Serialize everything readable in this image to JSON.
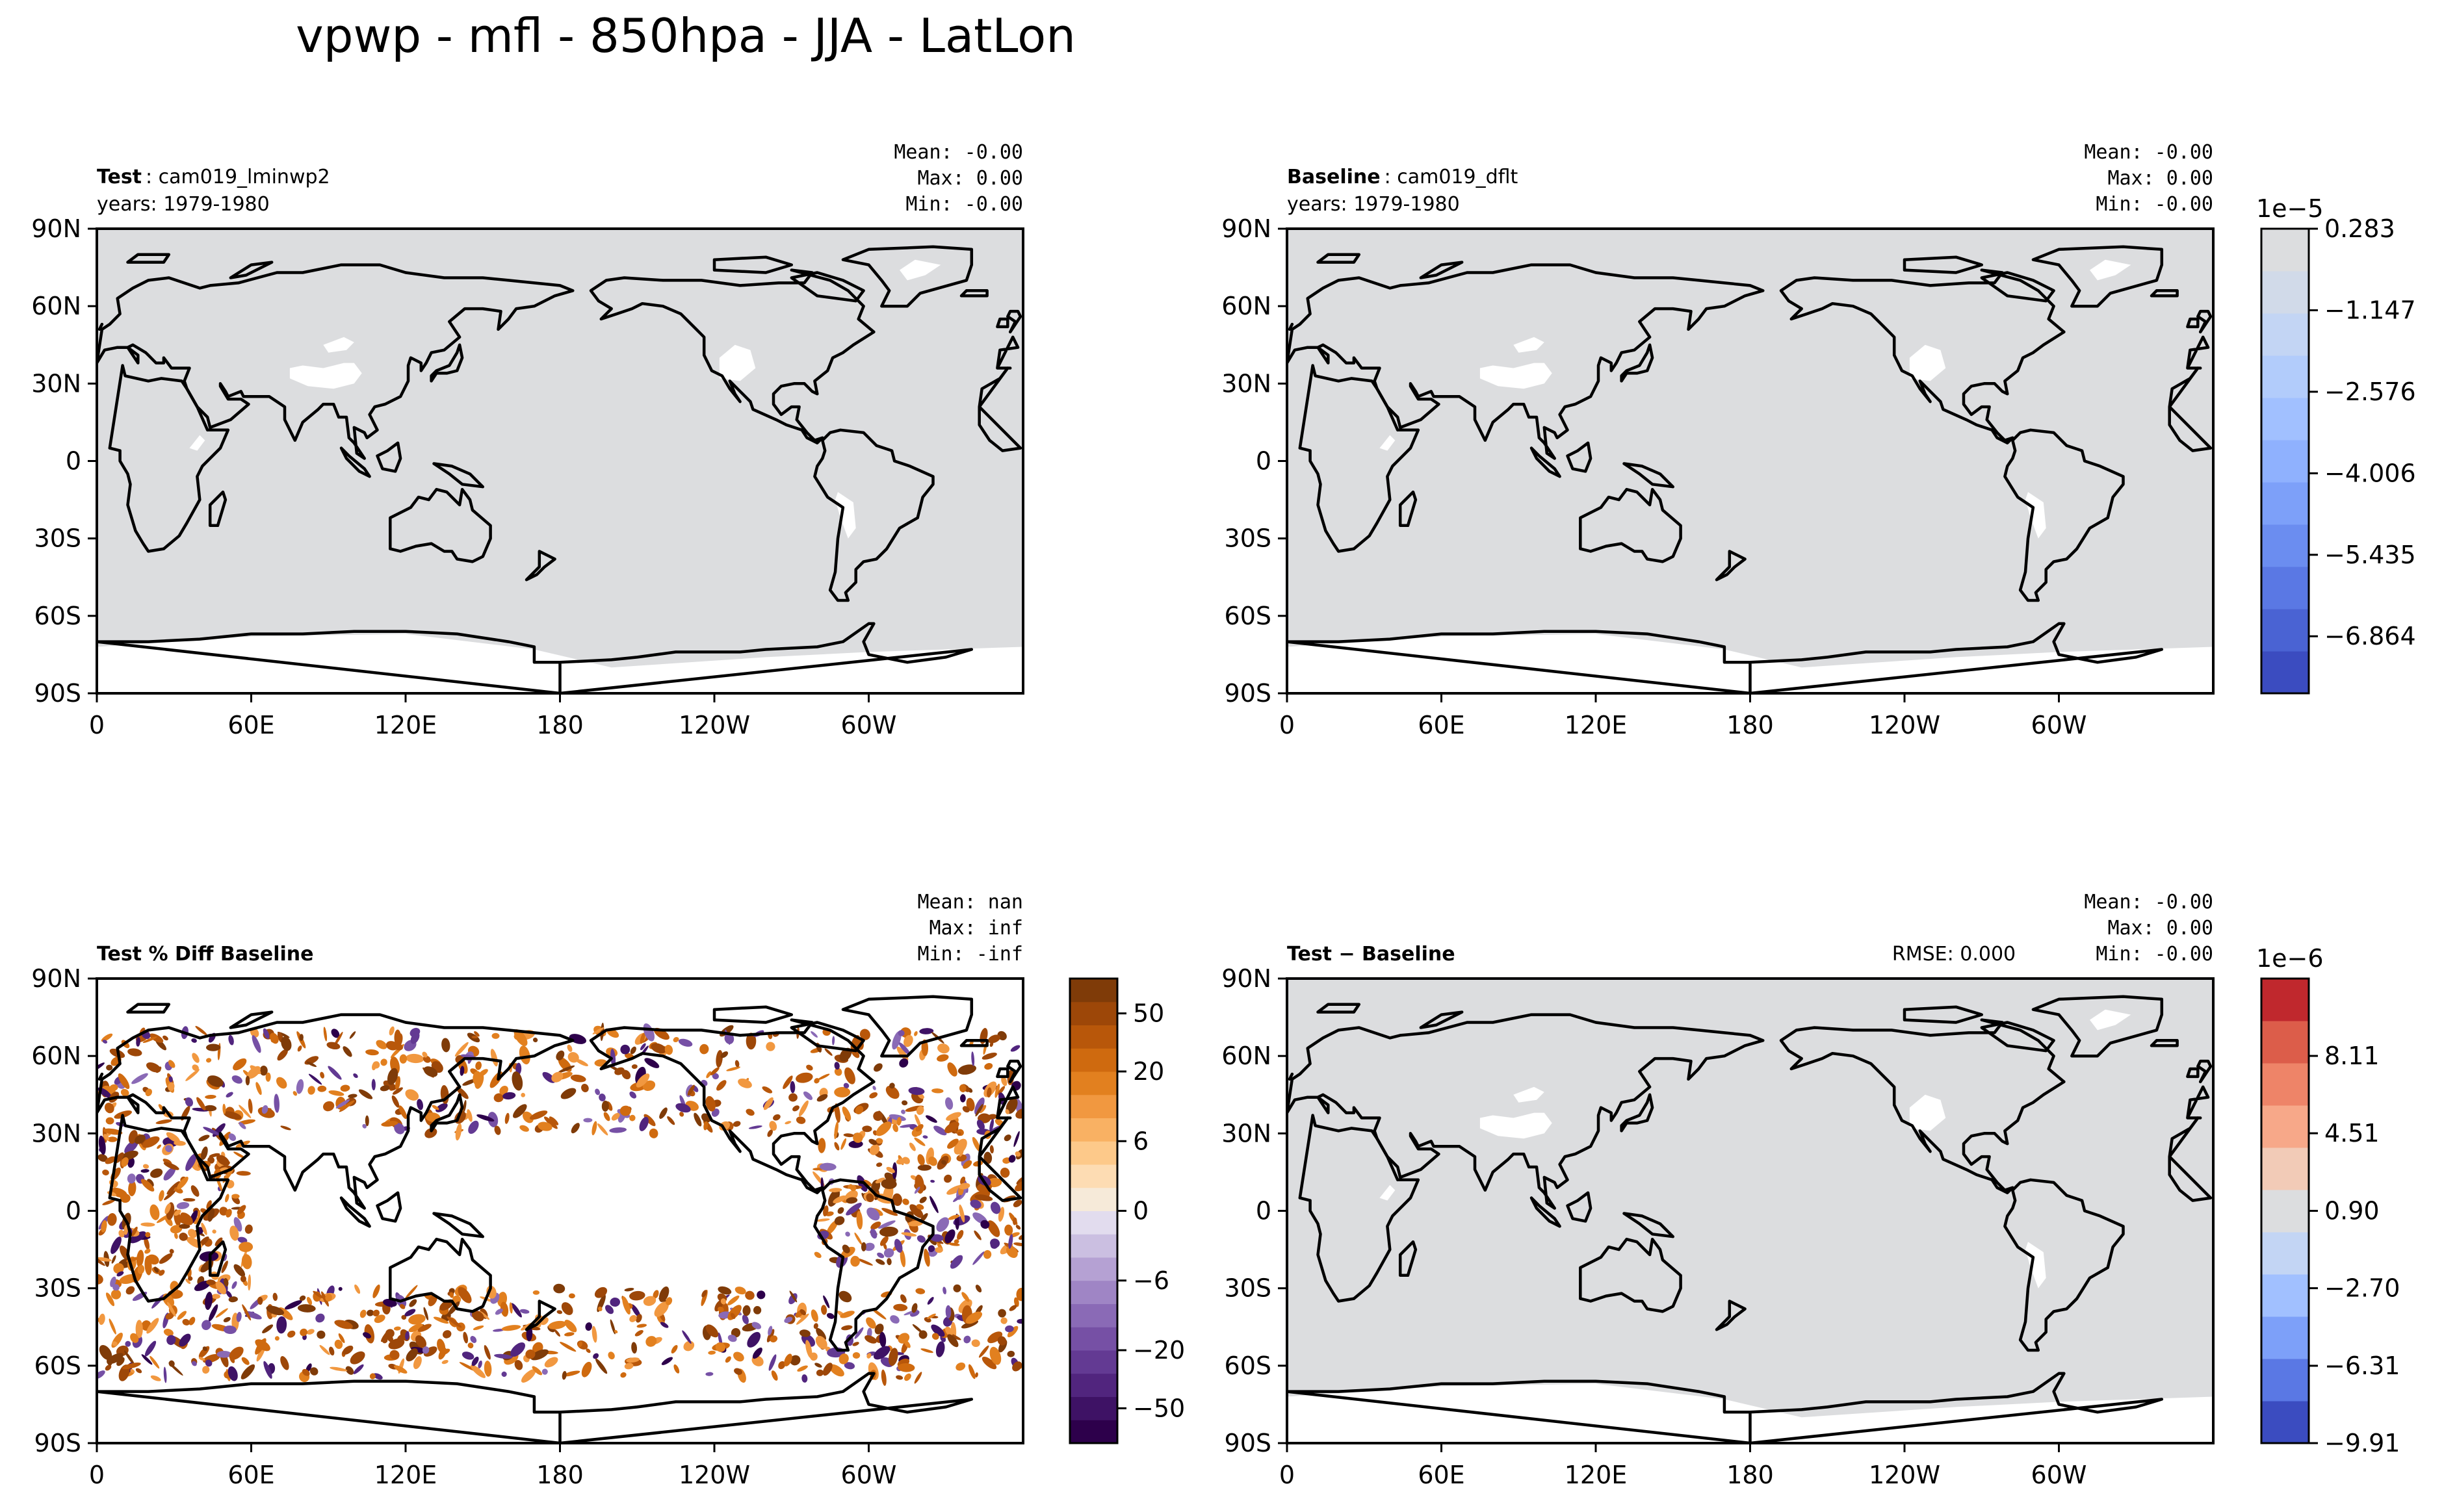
{
  "figure": {
    "title": "vpwp - mfl - 850hpa - JJA - LatLon"
  },
  "colors": {
    "land_fill": "#dcdddf",
    "coast": "#000000",
    "div_positive": "#8a4a0f",
    "div_negative": "#3b1f6e"
  },
  "chart_data": [
    {
      "id": "test",
      "type": "heatmap",
      "label_bold": "Test",
      "label_rest": ": cam019_lminwp2",
      "years": "years: 1979-1980",
      "stats": {
        "mean": "Mean: -0.00",
        "max": "Max:  0.00",
        "min": "Min: -0.00"
      },
      "rmse": "",
      "field": "mask",
      "x_ticks": [
        "0",
        "60E",
        "120E",
        "180",
        "120W",
        "60W"
      ],
      "y_ticks": [
        "90N",
        "60N",
        "30N",
        "0",
        "30S",
        "60S",
        "90S"
      ],
      "xlim": [
        0,
        360
      ],
      "ylim": [
        -90,
        90
      ]
    },
    {
      "id": "baseline",
      "type": "heatmap",
      "label_bold": "Baseline",
      "label_rest": ": cam019_dflt",
      "years": "years: 1979-1980",
      "stats": {
        "mean": "Mean: -0.00",
        "max": "Max:  0.00",
        "min": "Min: -0.00"
      },
      "rmse": "",
      "field": "mask",
      "x_ticks": [
        "0",
        "60E",
        "120E",
        "180",
        "120W",
        "60W"
      ],
      "y_ticks": [
        "90N",
        "60N",
        "30N",
        "0",
        "30S",
        "60S",
        "90S"
      ],
      "xlim": [
        0,
        360
      ],
      "ylim": [
        -90,
        90
      ],
      "colorbar": {
        "exponent": "1e−5",
        "levels_n": 11,
        "tick_labels": [
          "0.283",
          "−1.147",
          "−2.576",
          "−4.006",
          "−5.435",
          "−6.864"
        ],
        "tick_values": [
          0.283,
          -1.147,
          -2.576,
          -4.006,
          -5.435,
          -6.864
        ],
        "range": [
          -7.864,
          0.283
        ],
        "colors": [
          "#3b4cc0",
          "#4a63d3",
          "#5a78e4",
          "#6b8df0",
          "#7da0f9",
          "#8fb1fe",
          "#a1c0ff",
          "#b2ccfb",
          "#c3d5f4",
          "#d1dae9",
          "#dcdddf"
        ]
      }
    },
    {
      "id": "diff",
      "type": "heatmap",
      "label_bold": "Test % Diff Baseline",
      "label_rest": "",
      "years": "",
      "stats": {
        "mean": "Mean:   nan",
        "max": "Max:   inf",
        "min": "Min:  -inf"
      },
      "rmse": "",
      "field": "speckle",
      "x_ticks": [
        "0",
        "60E",
        "120E",
        "180",
        "120W",
        "60W"
      ],
      "y_ticks": [
        "90N",
        "60N",
        "30N",
        "0",
        "30S",
        "60S",
        "90S"
      ],
      "xlim": [
        0,
        360
      ],
      "ylim": [
        -90,
        90
      ],
      "colorbar": {
        "exponent": "",
        "levels_n": 20,
        "tick_labels": [
          "50",
          "20",
          "6",
          "0",
          "−6",
          "−20",
          "−50"
        ],
        "tick_values": [
          50,
          20,
          6,
          0,
          -6,
          -20,
          -50
        ],
        "scale": "symlog-levels",
        "levels": [
          -80,
          -60,
          -40,
          -30,
          -20,
          -15,
          -10,
          -6,
          -3,
          -1,
          0,
          1,
          3,
          6,
          10,
          15,
          20,
          30,
          40,
          60,
          80
        ],
        "colors": [
          "#2d004b",
          "#3e1265",
          "#51257e",
          "#633a93",
          "#7650a5",
          "#8a6ab6",
          "#9f85c5",
          "#b5a1d3",
          "#cbbfe1",
          "#e2dcee",
          "#f6ead9",
          "#fddcb3",
          "#fdc98a",
          "#f9b163",
          "#f19840",
          "#e2801f",
          "#cf6a0f",
          "#b8570a",
          "#9d4708",
          "#7f3b08"
        ]
      }
    },
    {
      "id": "test_minus_baseline",
      "type": "heatmap",
      "label_bold": "Test − Baseline",
      "label_rest": "",
      "years": "",
      "stats": {
        "mean": "Mean: -0.00",
        "max": "Max:  0.00",
        "min": "Min: -0.00"
      },
      "rmse": "RMSE: 0.000",
      "field": "mask",
      "x_ticks": [
        "0",
        "60E",
        "120E",
        "180",
        "120W",
        "60W"
      ],
      "y_ticks": [
        "90N",
        "60N",
        "30N",
        "0",
        "30S",
        "60S",
        "90S"
      ],
      "xlim": [
        0,
        360
      ],
      "ylim": [
        -90,
        90
      ],
      "colorbar": {
        "exponent": "1e−6",
        "levels_n": 11,
        "tick_labels": [
          "8.11",
          "4.51",
          "0.90",
          "−2.70",
          "−6.31",
          "−9.91"
        ],
        "tick_values": [
          8.11,
          4.51,
          0.9,
          -2.7,
          -6.31,
          -9.91
        ],
        "range": [
          -9.91,
          11.71
        ],
        "colors": [
          "#3b4cc0",
          "#5a78e4",
          "#7da0f9",
          "#a1c0ff",
          "#c3d5f4",
          "#dcdddf",
          "#f2cbb7",
          "#f7a889",
          "#ee8468",
          "#dc5d4a",
          "#c0282d"
        ]
      }
    }
  ]
}
